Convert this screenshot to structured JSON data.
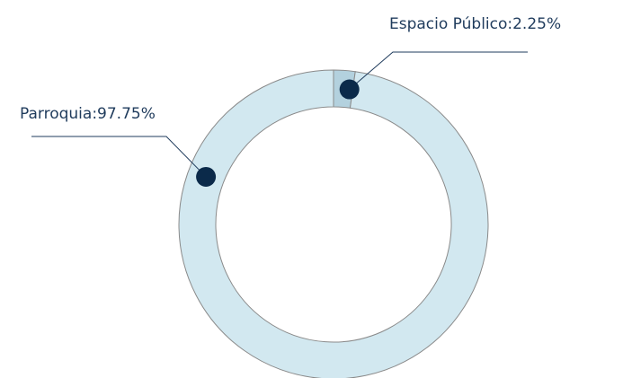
{
  "chart_data": {
    "type": "donut",
    "values": [
      2.25,
      97.75
    ],
    "value_labels": [
      "Espacio Público:2.25%",
      "Parroquia:97.75%"
    ],
    "colors": [
      "#b3d1de",
      "#d2e8f0"
    ],
    "dot_color": "#0b2a4a"
  }
}
